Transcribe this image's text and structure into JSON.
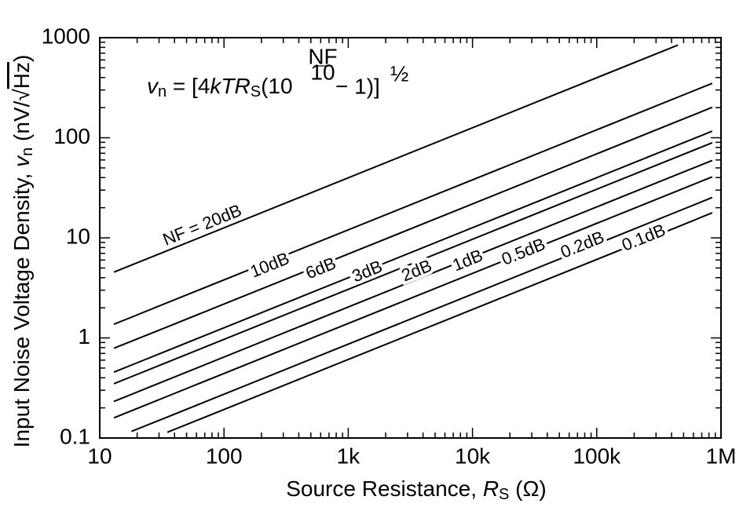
{
  "chart_data": {
    "type": "line",
    "x": [
      13,
      18,
      35,
      450000,
      850000
    ],
    "xscale": "log",
    "yscale": "log",
    "xlim": [
      10,
      1000000
    ],
    "xticks": [
      10,
      100,
      {
        "value": 1000,
        "label": "1k"
      },
      {
        "value": 10000,
        "label": "10k"
      },
      {
        "value": 100000,
        "label": "100k"
      },
      {
        "value": 1000000,
        "label": "1M"
      }
    ],
    "ylim": [
      0.1,
      1000
    ],
    "yticks": [
      0.1,
      1,
      10,
      100,
      1000
    ],
    "xlabel": [
      "Source Resistance, ",
      "R",
      "S",
      " (Ω)"
    ],
    "ylabel": [
      "Input Noise Voltage Density, ",
      "v",
      "n",
      " (nV/√",
      "Hz",
      ")"
    ],
    "formula": [
      "v",
      "n",
      " = [4",
      "kTR",
      "S",
      "(10",
      "NF",
      "10",
      "− 1)]",
      "½"
    ],
    "series": [
      {
        "name": "NF = 20dB",
        "color": "#000000",
        "values": [
          4.54,
          5.34,
          7.45,
          844,
          null
        ]
      },
      {
        "name": "10dB",
        "color": "#000000",
        "values": [
          1.37,
          1.61,
          2.25,
          254.6,
          349.9
        ]
      },
      {
        "name": "6dB",
        "color": "#000000",
        "values": [
          0.788,
          0.927,
          1.29,
          146.5,
          201.4
        ]
      },
      {
        "name": "3dB",
        "color": "#000000",
        "values": [
          0.455,
          0.535,
          0.747,
          84.7,
          116.4
        ]
      },
      {
        "name": "2dB",
        "color": "#000000",
        "values": [
          0.349,
          0.41,
          0.572,
          64.9,
          89.2
        ]
      },
      {
        "name": "1dB",
        "color": "#000000",
        "values": [
          0.232,
          0.273,
          0.381,
          43.2,
          59.3
        ]
      },
      {
        "name": "0.5dB",
        "color": "#000000",
        "values": [
          0.159,
          0.187,
          0.261,
          29.6,
          40.7
        ]
      },
      {
        "name": "0.2dB",
        "color": "#000000",
        "values": [
          null,
          0.1165,
          0.162,
          18.4,
          25.3
        ]
      },
      {
        "name": "0.1dB",
        "color": "#000000",
        "values": [
          null,
          null,
          0.114,
          12.9,
          17.8
        ]
      }
    ]
  }
}
